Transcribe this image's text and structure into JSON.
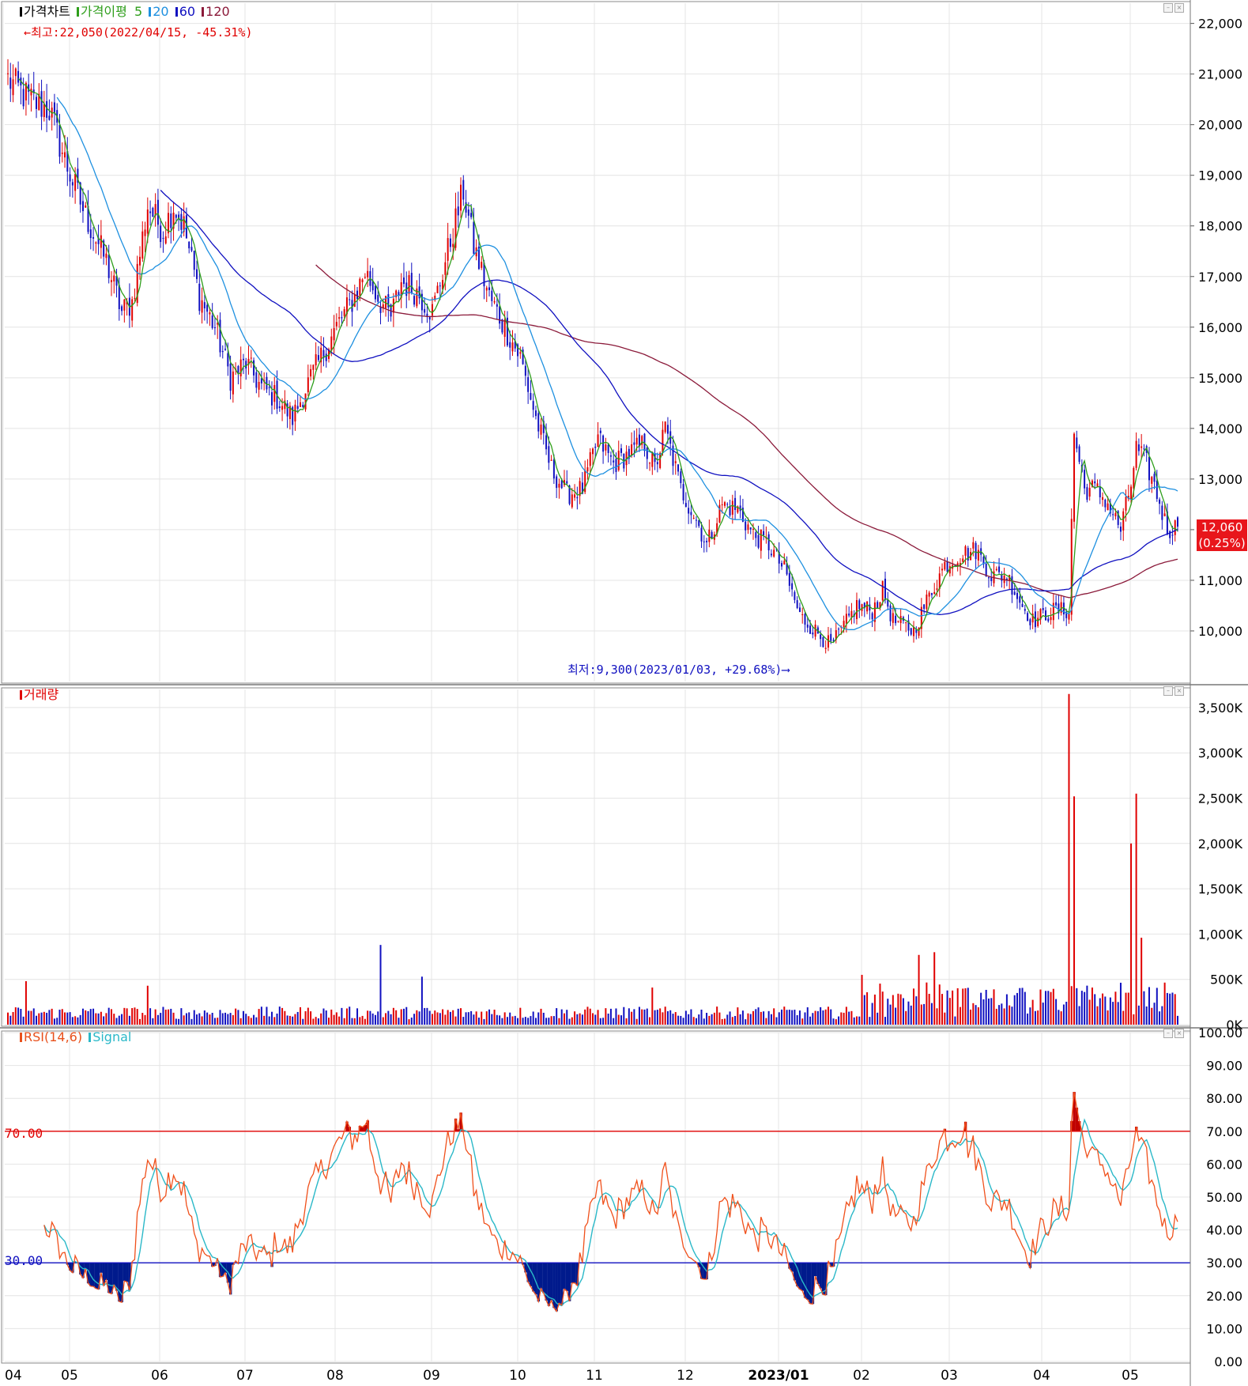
{
  "panels": {
    "price": {
      "legend": [
        {
          "label": "가격차트",
          "color": "#000000"
        },
        {
          "label": "가격이평",
          "color": "#2e9e1b"
        },
        {
          "label": "5",
          "color": "#2e9e1b"
        },
        {
          "label": "20",
          "color": "#1e90e0"
        },
        {
          "label": "60",
          "color": "#1010c0"
        },
        {
          "label": "120",
          "color": "#8b1a3a"
        }
      ],
      "high_annotation": "←최고:22,050(2022/04/15, -45.31%)",
      "low_annotation": "최저:9,300(2023/01/03, +29.68%)⟶",
      "last_price": "12,060",
      "last_change": "(0.25%)"
    },
    "volume": {
      "legend": [
        {
          "label": "거래량",
          "color": "#e00000"
        }
      ]
    },
    "rsi": {
      "legend": [
        {
          "label": "RSI(14,6)",
          "color": "#e8501b"
        },
        {
          "label": "Signal",
          "color": "#2ab8c8"
        }
      ],
      "upper_label": "70.00",
      "lower_label": "30.00"
    }
  },
  "colors": {
    "up": "#e00000",
    "down": "#1010c0",
    "ma5": "#2e9e1b",
    "ma20": "#1e90e0",
    "ma60": "#1010c0",
    "ma120": "#8b1a3a",
    "rsi": "#f0501b",
    "signal": "#2ab8c8",
    "overbought_fill": "#c00000",
    "oversold_fill": "#001a8c"
  },
  "chart_data": [
    {
      "type": "candlestick",
      "title": "가격차트",
      "x_tick_labels": [
        "04",
        "05",
        "06",
        "07",
        "08",
        "09",
        "10",
        "11",
        "12",
        "2023/01",
        "02",
        "03",
        "04",
        "05"
      ],
      "y_ticks": [
        10000,
        11000,
        12000,
        13000,
        14000,
        15000,
        16000,
        17000,
        18000,
        19000,
        20000,
        21000,
        22000
      ],
      "y_tick_labels": [
        "10,000",
        "11,000",
        "12,000",
        "13,000",
        "14,000",
        "15,000",
        "16,000",
        "17,000",
        "18,000",
        "19,000",
        "20,000",
        "21,000",
        "22,000"
      ],
      "ylim": [
        9000,
        22400
      ],
      "close_path": [
        [
          0,
          20900
        ],
        [
          8,
          20500
        ],
        [
          16,
          20300
        ],
        [
          22,
          19300
        ],
        [
          30,
          18200
        ],
        [
          38,
          17300
        ],
        [
          44,
          16300
        ],
        [
          48,
          16500
        ],
        [
          54,
          18400
        ],
        [
          60,
          17900
        ],
        [
          64,
          18400
        ],
        [
          68,
          18000
        ],
        [
          74,
          16600
        ],
        [
          80,
          16000
        ],
        [
          86,
          15000
        ],
        [
          92,
          15300
        ],
        [
          98,
          14800
        ],
        [
          104,
          14600
        ],
        [
          110,
          14200
        ],
        [
          116,
          14900
        ],
        [
          122,
          15500
        ],
        [
          128,
          16100
        ],
        [
          134,
          16600
        ],
        [
          138,
          17100
        ],
        [
          144,
          16500
        ],
        [
          148,
          16200
        ],
        [
          152,
          16900
        ],
        [
          158,
          16700
        ],
        [
          164,
          16300
        ],
        [
          170,
          17500
        ],
        [
          176,
          18700
        ],
        [
          180,
          17600
        ],
        [
          186,
          16600
        ],
        [
          192,
          16000
        ],
        [
          198,
          15400
        ],
        [
          204,
          14200
        ],
        [
          210,
          13200
        ],
        [
          216,
          12700
        ],
        [
          222,
          12800
        ],
        [
          228,
          13800
        ],
        [
          234,
          13300
        ],
        [
          240,
          13500
        ],
        [
          246,
          13700
        ],
        [
          250,
          13200
        ],
        [
          254,
          14000
        ],
        [
          260,
          12800
        ],
        [
          266,
          12200
        ],
        [
          270,
          11700
        ],
        [
          276,
          12500
        ],
        [
          282,
          12400
        ],
        [
          288,
          11900
        ],
        [
          294,
          11700
        ],
        [
          300,
          11200
        ],
        [
          306,
          10300
        ],
        [
          312,
          10000
        ],
        [
          318,
          9700
        ],
        [
          322,
          10000
        ],
        [
          328,
          10500
        ],
        [
          334,
          10400
        ],
        [
          338,
          10800
        ],
        [
          342,
          10200
        ],
        [
          346,
          10100
        ],
        [
          350,
          10000
        ],
        [
          356,
          10700
        ],
        [
          362,
          11300
        ],
        [
          368,
          11500
        ],
        [
          374,
          11600
        ],
        [
          380,
          11100
        ],
        [
          386,
          11100
        ],
        [
          392,
          10500
        ],
        [
          396,
          10200
        ],
        [
          400,
          10300
        ],
        [
          404,
          10400
        ],
        [
          410,
          10400
        ],
        [
          412,
          13900
        ],
        [
          416,
          12800
        ],
        [
          420,
          12800
        ],
        [
          424,
          12600
        ],
        [
          430,
          12000
        ],
        [
          434,
          12900
        ],
        [
          436,
          13600
        ],
        [
          440,
          13300
        ],
        [
          444,
          12700
        ],
        [
          448,
          12000
        ],
        [
          452,
          12060
        ]
      ],
      "max_index": 452,
      "ma5": "computed moving average of close",
      "ma20": "computed moving average of close",
      "ma60": "computed moving average of close",
      "ma120": "computed moving average of close"
    },
    {
      "type": "bar",
      "title": "거래량",
      "y_ticks": [
        0,
        500000,
        1000000,
        1500000,
        2000000,
        2500000,
        3000000,
        3500000
      ],
      "y_tick_labels": [
        "0K",
        "500K",
        "1,000K",
        "1,500K",
        "2,000K",
        "2,500K",
        "3,000K",
        "3,500K"
      ],
      "ylim": [
        0,
        3700000
      ],
      "spikes": [
        [
          7,
          480000
        ],
        [
          54,
          430000
        ],
        [
          144,
          880000
        ],
        [
          160,
          530000
        ],
        [
          249,
          410000
        ],
        [
          330,
          550000
        ],
        [
          352,
          770000
        ],
        [
          358,
          800000
        ],
        [
          410,
          3650000
        ],
        [
          412,
          2520000
        ],
        [
          434,
          2000000
        ],
        [
          436,
          2550000
        ],
        [
          438,
          960000
        ]
      ]
    },
    {
      "type": "line",
      "title": "RSI(14,6)",
      "series": [
        {
          "name": "RSI(14,6)"
        },
        {
          "name": "Signal"
        }
      ],
      "y_ticks": [
        0,
        10,
        20,
        30,
        40,
        50,
        60,
        70,
        80,
        90,
        100
      ],
      "y_tick_labels": [
        "0.00",
        "10.00",
        "20.00",
        "30.00",
        "40.00",
        "50.00",
        "60.00",
        "70.00",
        "80.00",
        "90.00",
        "100.00"
      ],
      "ylim": [
        0,
        100
      ],
      "levels": [
        70,
        30
      ]
    }
  ]
}
